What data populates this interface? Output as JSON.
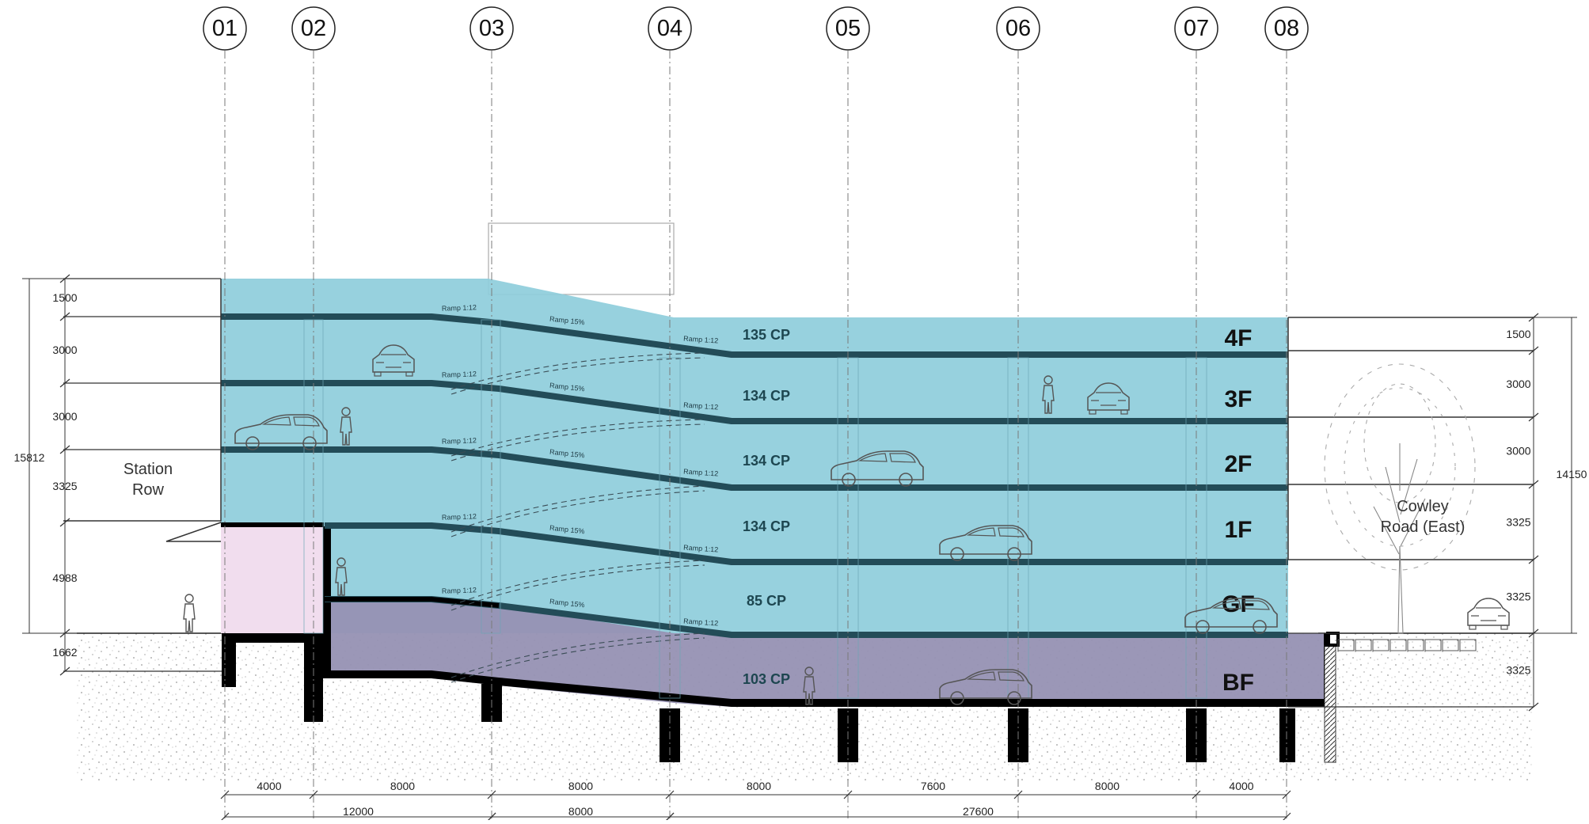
{
  "colors": {
    "parking_fill": "#8ecddb",
    "basement_fill": "#9691b3",
    "station_fill": "#f1ddee",
    "slab": "#234c58",
    "structure": "#000000",
    "ground_hatch": "#9a9a9a",
    "gridline": "#7a7a7a"
  },
  "icons": [
    "car-icon",
    "person-icon",
    "tree-icon"
  ],
  "grid_labels": [
    "01",
    "02",
    "03",
    "04",
    "05",
    "06",
    "07",
    "08"
  ],
  "floors": [
    {
      "label": "4F",
      "capacity": "135 CP"
    },
    {
      "label": "3F",
      "capacity": "134 CP"
    },
    {
      "label": "2F",
      "capacity": "134 CP"
    },
    {
      "label": "1F",
      "capacity": "134 CP"
    },
    {
      "label": "GF",
      "capacity": "85 CP"
    },
    {
      "label": "BF",
      "capacity": "103 CP"
    }
  ],
  "ramp_labels": {
    "gentle": "Ramp 1:12",
    "steep": "Ramp 15%"
  },
  "annotations": {
    "station_row": [
      "Station",
      "Row"
    ],
    "cowley_road": [
      "Cowley",
      "Road (East)"
    ]
  },
  "left_dims": {
    "total": "15812",
    "segments": [
      "1500",
      "3000",
      "3000",
      "3325",
      "4988",
      "1662"
    ]
  },
  "right_dims": {
    "total": "14150",
    "segments": [
      "1500",
      "3000",
      "3000",
      "3325",
      "3325",
      "3325"
    ]
  },
  "bottom_dims": {
    "row1": [
      "4000",
      "8000",
      "8000",
      "8000",
      "7600",
      "8000",
      "4000"
    ],
    "row2": [
      "12000",
      "8000",
      "27600"
    ]
  }
}
